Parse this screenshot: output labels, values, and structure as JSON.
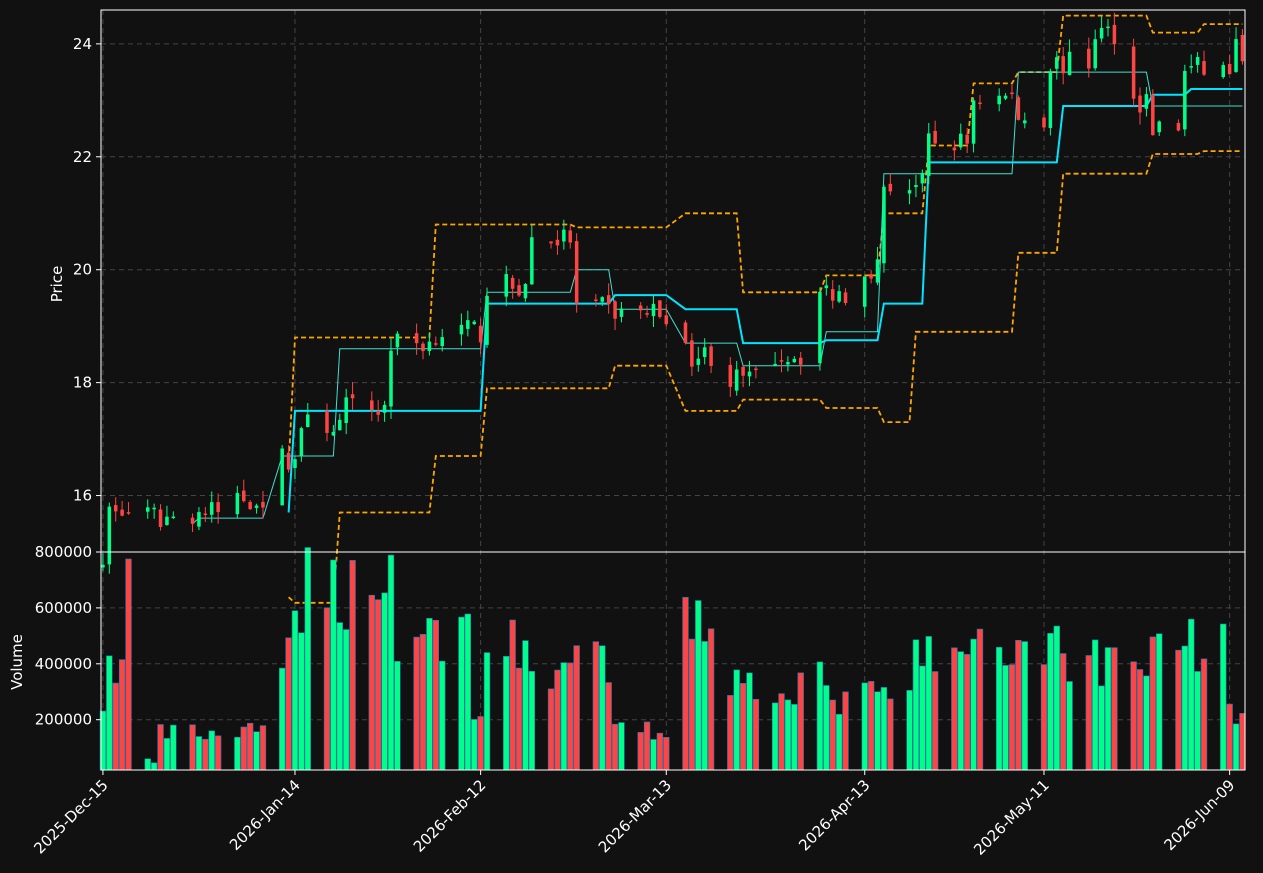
{
  "chart_data": {
    "type": "candlestick",
    "subplots": [
      {
        "name": "price",
        "ylabel": "Price",
        "ylim": [
          15.0,
          24.6
        ],
        "yticks": [
          16,
          18,
          20,
          22,
          24
        ]
      },
      {
        "name": "volume",
        "ylabel": "Volume",
        "ylim": [
          20000,
          800000
        ],
        "yticks": [
          200000,
          400000,
          600000,
          800000
        ]
      }
    ],
    "x_range": [
      "2025-12-15",
      "2026-06-11"
    ],
    "xticks": [
      "2025-Dec-15",
      "2026-Jan-14",
      "2026-Feb-12",
      "2026-Mar-13",
      "2026-Apr-13",
      "2026-May-11",
      "2026-Jun-09"
    ],
    "grid": true,
    "legend": "none",
    "colors": {
      "up": "#00ff88",
      "down": "#ff4444",
      "bollinger": "#ffa500",
      "sma_slow": "#00e5ff",
      "sma_fast": "#40e0d0",
      "background": "#111111"
    },
    "ohlc_anchors": [
      [
        "2025-12-15",
        15.0,
        15.0
      ],
      [
        "2025-12-19",
        15.7,
        15.7
      ],
      [
        "2025-12-26",
        15.6,
        15.6
      ],
      [
        "2026-01-02",
        15.7,
        15.7
      ],
      [
        "2026-01-09",
        15.9,
        16.0
      ],
      [
        "2026-01-14",
        16.6,
        16.7
      ],
      [
        "2026-01-21",
        17.2,
        17.3
      ],
      [
        "2026-01-28",
        17.5,
        17.6
      ],
      [
        "2026-02-04",
        18.6,
        18.8
      ],
      [
        "2026-02-12",
        18.8,
        19.0
      ],
      [
        "2026-02-19",
        19.5,
        19.9
      ],
      [
        "2026-02-26",
        20.6,
        20.5
      ],
      [
        "2026-03-04",
        19.6,
        19.0
      ],
      [
        "2026-03-13",
        19.0,
        19.5
      ],
      [
        "2026-03-20",
        18.8,
        18.2
      ],
      [
        "2026-03-27",
        18.0,
        18.1
      ],
      [
        "2026-04-03",
        18.3,
        18.7
      ],
      [
        "2026-04-10",
        19.7,
        19.5
      ],
      [
        "2026-04-15",
        19.5,
        20.6
      ],
      [
        "2026-04-22",
        21.0,
        22.0
      ],
      [
        "2026-04-29",
        21.7,
        22.8
      ],
      [
        "2026-05-06",
        23.0,
        23.1
      ],
      [
        "2026-05-11",
        22.8,
        22.6
      ],
      [
        "2026-05-18",
        23.5,
        23.8
      ],
      [
        "2026-05-22",
        24.2,
        24.2
      ],
      [
        "2026-05-27",
        23.4,
        22.6
      ],
      [
        "2026-06-01",
        22.4,
        22.6
      ],
      [
        "2026-06-09",
        23.4,
        23.7
      ],
      [
        "2026-06-11",
        23.9,
        23.9
      ]
    ],
    "volume_anchors": [
      [
        "2025-12-15",
        270000
      ],
      [
        "2025-12-18",
        380000
      ],
      [
        "2025-12-19",
        770000
      ],
      [
        "2025-12-23",
        50000
      ],
      [
        "2026-01-09",
        150000
      ],
      [
        "2026-01-13",
        440000
      ],
      [
        "2026-01-28",
        680000
      ],
      [
        "2026-01-29",
        740000
      ],
      [
        "2026-02-05",
        500000
      ],
      [
        "2026-02-10",
        520000
      ],
      [
        "2026-02-12",
        250000
      ],
      [
        "2026-02-19",
        450000
      ],
      [
        "2026-03-04",
        390000
      ],
      [
        "2026-03-13",
        160000
      ],
      [
        "2026-03-20",
        600000
      ],
      [
        "2026-04-06",
        330000
      ],
      [
        "2026-04-20",
        280000
      ],
      [
        "2026-05-06",
        430000
      ],
      [
        "2026-05-13",
        490000
      ],
      [
        "2026-05-27",
        420000
      ],
      [
        "2026-06-08",
        480000
      ],
      [
        "2026-06-11",
        220000
      ]
    ],
    "bollinger_upper_anchors": [
      [
        "2026-01-13",
        16.5
      ],
      [
        "2026-02-04",
        18.8
      ],
      [
        "2026-02-26",
        20.8
      ],
      [
        "2026-03-13",
        20.75
      ],
      [
        "2026-03-24",
        21.0
      ],
      [
        "2026-04-06",
        19.6
      ],
      [
        "2026-04-15",
        19.9
      ],
      [
        "2026-04-22",
        21.0
      ],
      [
        "2026-04-29",
        22.2
      ],
      [
        "2026-05-06",
        23.3
      ],
      [
        "2026-05-13",
        23.5
      ],
      [
        "2026-05-27",
        24.5
      ],
      [
        "2026-06-04",
        24.2
      ],
      [
        "2026-06-11",
        24.35
      ]
    ],
    "bollinger_lower_anchors": [
      [
        "2026-01-13",
        14.2
      ],
      [
        "2026-01-20",
        14.1
      ],
      [
        "2026-02-04",
        15.7
      ],
      [
        "2026-02-12",
        16.7
      ],
      [
        "2026-03-04",
        17.9
      ],
      [
        "2026-03-13",
        18.3
      ],
      [
        "2026-03-24",
        17.5
      ],
      [
        "2026-04-06",
        17.7
      ],
      [
        "2026-04-15",
        17.55
      ],
      [
        "2026-04-20",
        17.3
      ],
      [
        "2026-05-06",
        18.9
      ],
      [
        "2026-05-13",
        20.3
      ],
      [
        "2026-05-27",
        21.7
      ],
      [
        "2026-06-04",
        22.05
      ],
      [
        "2026-06-11",
        22.1
      ]
    ],
    "sma_slow_anchors": [
      [
        "2026-01-13",
        15.7
      ],
      [
        "2026-02-12",
        17.5
      ],
      [
        "2026-03-04",
        19.4
      ],
      [
        "2026-03-13",
        19.55
      ],
      [
        "2026-03-24",
        19.3
      ],
      [
        "2026-04-06",
        18.7
      ],
      [
        "2026-04-15",
        18.75
      ],
      [
        "2026-04-22",
        19.4
      ],
      [
        "2026-05-13",
        21.9
      ],
      [
        "2026-05-27",
        22.9
      ],
      [
        "2026-06-02",
        23.1
      ],
      [
        "2026-06-11",
        23.2
      ]
    ],
    "sma_fast_anchors": [
      [
        "2025-12-29",
        15.5
      ],
      [
        "2026-01-09",
        15.6
      ],
      [
        "2026-01-20",
        16.7
      ],
      [
        "2026-02-12",
        18.6
      ],
      [
        "2026-02-26",
        19.6
      ],
      [
        "2026-03-04",
        20.0
      ],
      [
        "2026-03-13",
        19.3
      ],
      [
        "2026-03-24",
        18.7
      ],
      [
        "2026-04-06",
        18.3
      ],
      [
        "2026-04-15",
        18.9
      ],
      [
        "2026-05-06",
        21.7
      ],
      [
        "2026-05-27",
        23.5
      ],
      [
        "2026-06-11",
        22.9
      ]
    ]
  }
}
